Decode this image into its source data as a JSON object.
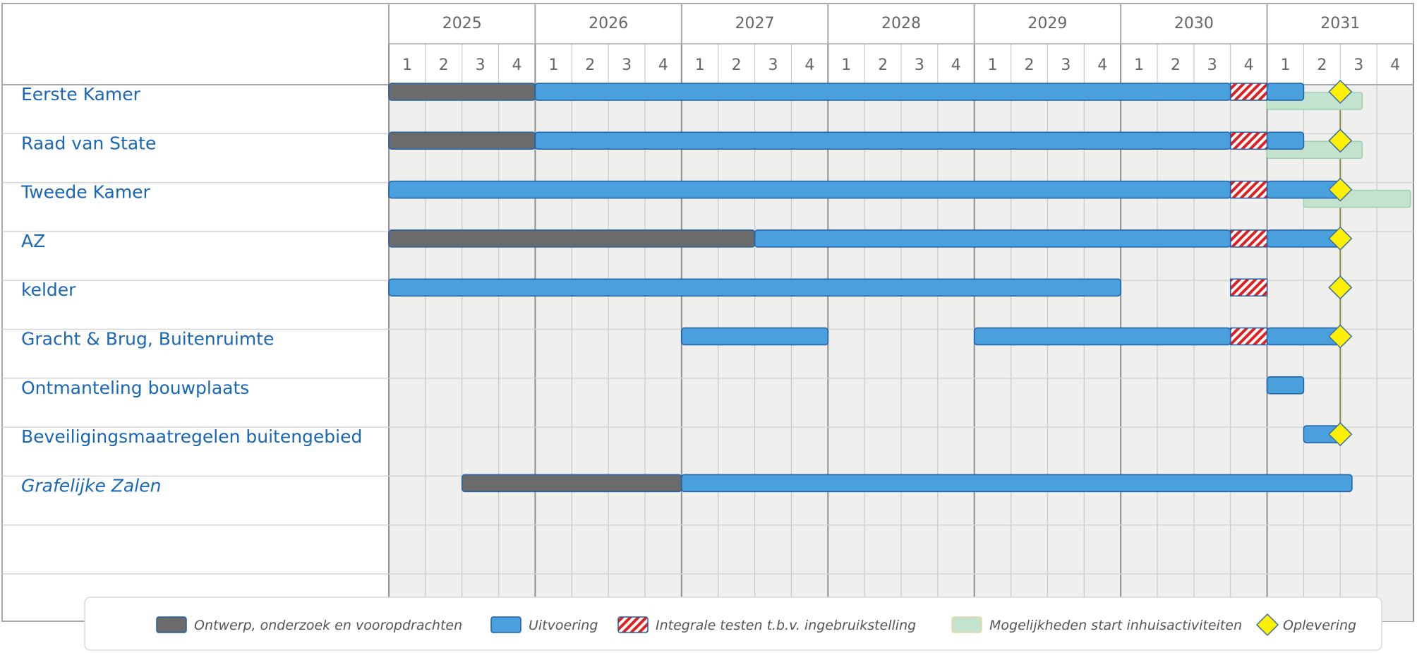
{
  "chart_data": {
    "type": "gantt",
    "years": [
      "2025",
      "2026",
      "2027",
      "2028",
      "2029",
      "2030",
      "2031"
    ],
    "quarters": [
      "1",
      "2",
      "3",
      "4"
    ],
    "time_range": {
      "start": 2025.0,
      "end": 2032.0
    },
    "rows": [
      {
        "label": "Eerste Kamer",
        "italic": false,
        "bars": [
          {
            "type": "ontwerp",
            "start": 2025.0,
            "end": 2026.0
          },
          {
            "type": "uitvoering",
            "start": 2026.0,
            "end": 2030.75
          },
          {
            "type": "testen",
            "start": 2030.75,
            "end": 2031.0
          },
          {
            "type": "uitvoering",
            "start": 2031.0,
            "end": 2031.25
          }
        ],
        "mogelijkheden": {
          "start": 2031.0,
          "end": 2031.65
        },
        "oplevering": 2031.5
      },
      {
        "label": "Raad van State",
        "italic": false,
        "bars": [
          {
            "type": "ontwerp",
            "start": 2025.0,
            "end": 2026.0
          },
          {
            "type": "uitvoering",
            "start": 2026.0,
            "end": 2030.75
          },
          {
            "type": "testen",
            "start": 2030.75,
            "end": 2031.0
          },
          {
            "type": "uitvoering",
            "start": 2031.0,
            "end": 2031.25
          }
        ],
        "mogelijkheden": {
          "start": 2031.0,
          "end": 2031.65
        },
        "oplevering": 2031.5
      },
      {
        "label": "Tweede Kamer",
        "italic": false,
        "bars": [
          {
            "type": "uitvoering",
            "start": 2025.0,
            "end": 2030.75
          },
          {
            "type": "testen",
            "start": 2030.75,
            "end": 2031.0
          },
          {
            "type": "uitvoering",
            "start": 2031.0,
            "end": 2031.5
          }
        ],
        "mogelijkheden": {
          "start": 2031.25,
          "end": 2031.98
        },
        "oplevering": 2031.5
      },
      {
        "label": "AZ",
        "italic": false,
        "bars": [
          {
            "type": "ontwerp",
            "start": 2025.0,
            "end": 2027.5
          },
          {
            "type": "uitvoering",
            "start": 2027.5,
            "end": 2030.75
          },
          {
            "type": "testen",
            "start": 2030.75,
            "end": 2031.0
          },
          {
            "type": "uitvoering",
            "start": 2031.0,
            "end": 2031.5
          }
        ],
        "oplevering": 2031.5
      },
      {
        "label": "kelder",
        "italic": false,
        "bars": [
          {
            "type": "uitvoering",
            "start": 2025.0,
            "end": 2030.0
          },
          {
            "type": "testen",
            "start": 2030.75,
            "end": 2031.0
          }
        ],
        "oplevering": 2031.5
      },
      {
        "label": "Gracht & Brug, Buitenruimte",
        "italic": false,
        "bars": [
          {
            "type": "uitvoering",
            "start": 2027.0,
            "end": 2028.0
          },
          {
            "type": "uitvoering",
            "start": 2029.0,
            "end": 2030.75
          },
          {
            "type": "testen",
            "start": 2030.75,
            "end": 2031.0
          },
          {
            "type": "uitvoering",
            "start": 2031.0,
            "end": 2031.5
          }
        ],
        "oplevering": 2031.5
      },
      {
        "label": "Ontmanteling bouwplaats",
        "italic": false,
        "bars": [
          {
            "type": "uitvoering",
            "start": 2031.0,
            "end": 2031.25
          }
        ]
      },
      {
        "label": "Beveiligingsmaatregelen buitengebied",
        "italic": false,
        "bars": [
          {
            "type": "uitvoering",
            "start": 2031.25,
            "end": 2031.5
          }
        ],
        "oplevering": 2031.5
      },
      {
        "label": "Grafelijke Zalen",
        "italic": true,
        "bars": [
          {
            "type": "ontwerp",
            "start": 2025.5,
            "end": 2027.0
          },
          {
            "type": "uitvoering",
            "start": 2027.0,
            "end": 2031.58
          }
        ]
      },
      {
        "label": "",
        "italic": false,
        "bars": []
      },
      {
        "label": "",
        "italic": false,
        "bars": []
      }
    ],
    "milestone_line": 2031.5,
    "legend": [
      {
        "type": "ontwerp",
        "label": "Ontwerp, onderzoek en vooropdrachten"
      },
      {
        "type": "uitvoering",
        "label": "Uitvoering"
      },
      {
        "type": "testen",
        "label": "Integrale testen t.b.v. ingebruikstelling"
      },
      {
        "type": "mogelijkheden",
        "label": "Mogelijkheden start inhuisactiviteiten"
      },
      {
        "type": "oplevering",
        "label": "Oplevering"
      }
    ],
    "legend_position": "bottom",
    "colors": {
      "ontwerp": "#6b6b6b",
      "uitvoering": "#4aa0dd",
      "bar_border": "#1f5fa8",
      "testen_red": "#e02020",
      "mogelijkheden": "#c4e3cf",
      "oplevering": "#ffef00",
      "row_label": "#1a66b8",
      "grid_bg": "#efefee"
    }
  }
}
